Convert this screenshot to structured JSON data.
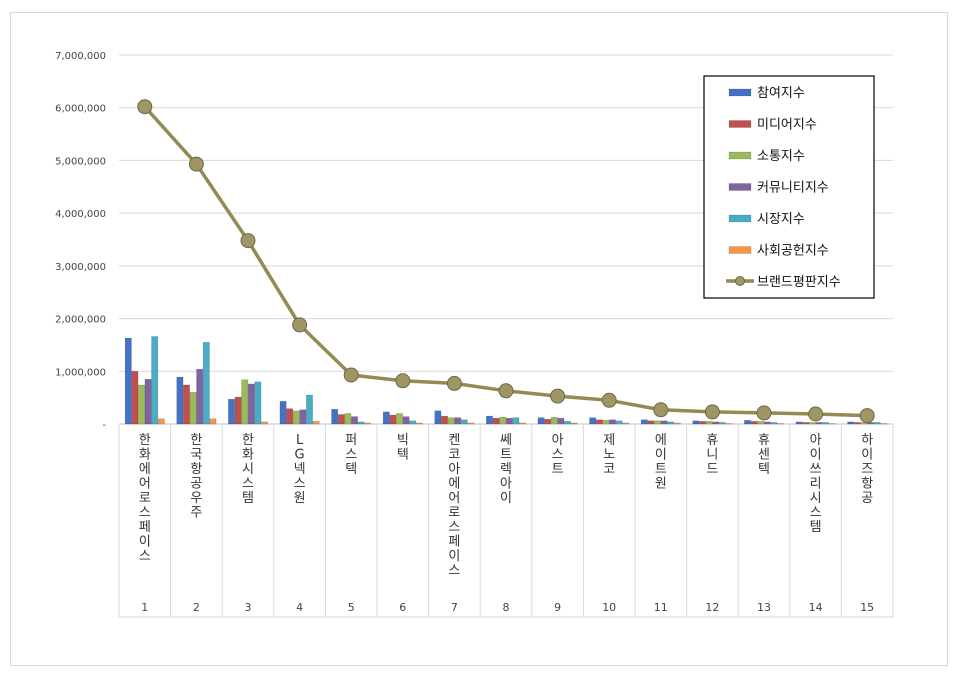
{
  "chart_data": {
    "type": "bar",
    "ylim": [
      0,
      7000000
    ],
    "yticks": [
      0,
      1000000,
      2000000,
      3000000,
      4000000,
      5000000,
      6000000,
      7000000
    ],
    "ytick_labels": [
      "-",
      "1,000,000",
      "2,000,000",
      "3,000,000",
      "4,000,000",
      "5,000,000",
      "6,000,000",
      "7,000,000"
    ],
    "x": [
      "1",
      "2",
      "3",
      "4",
      "5",
      "6",
      "7",
      "8",
      "9",
      "10",
      "11",
      "12",
      "13",
      "14",
      "15"
    ],
    "categories": [
      "한화에어로스페이스",
      "한국항공우주",
      "한화시스템",
      "LG넥스원",
      "퍼스텍",
      "빅텍",
      "켄코아에어로스페이스",
      "쎄트렉아이",
      "아스트",
      "제노코",
      "에이트원",
      "휴니드",
      "휴센텍",
      "아이쓰리시스템",
      "하이즈항공"
    ],
    "legend_position": "top-right",
    "grid": true,
    "series": [
      {
        "name": "참여지수",
        "type": "bar",
        "color": "#4472c4",
        "values": [
          1630000,
          890000,
          470000,
          430000,
          280000,
          230000,
          250000,
          150000,
          120000,
          120000,
          80000,
          60000,
          70000,
          40000,
          40000
        ]
      },
      {
        "name": "미디어지수",
        "type": "bar",
        "color": "#c0504d",
        "values": [
          1000000,
          740000,
          510000,
          290000,
          180000,
          170000,
          150000,
          110000,
          90000,
          80000,
          60000,
          50000,
          50000,
          30000,
          30000
        ]
      },
      {
        "name": "소통지수",
        "type": "bar",
        "color": "#9bbb59",
        "values": [
          740000,
          600000,
          840000,
          250000,
          200000,
          200000,
          120000,
          130000,
          130000,
          70000,
          60000,
          50000,
          50000,
          30000,
          30000
        ]
      },
      {
        "name": "커뮤니티지수",
        "type": "bar",
        "color": "#8064a2",
        "values": [
          850000,
          1040000,
          760000,
          270000,
          140000,
          140000,
          120000,
          110000,
          110000,
          80000,
          60000,
          40000,
          40000,
          30000,
          30000
        ]
      },
      {
        "name": "시장지수",
        "type": "bar",
        "color": "#4bacc6",
        "values": [
          1660000,
          1550000,
          800000,
          550000,
          40000,
          60000,
          80000,
          120000,
          50000,
          60000,
          40000,
          30000,
          30000,
          30000,
          30000
        ]
      },
      {
        "name": "사회공헌지수",
        "type": "bar",
        "color": "#f79646",
        "values": [
          100000,
          100000,
          40000,
          50000,
          20000,
          20000,
          20000,
          20000,
          20000,
          20000,
          20000,
          10000,
          10000,
          10000,
          10000
        ]
      },
      {
        "name": "브랜드평판지수",
        "type": "line",
        "color": "#948a54",
        "values": [
          6020000,
          4930000,
          3480000,
          1880000,
          930000,
          820000,
          770000,
          630000,
          530000,
          450000,
          270000,
          230000,
          210000,
          190000,
          160000
        ]
      }
    ]
  }
}
